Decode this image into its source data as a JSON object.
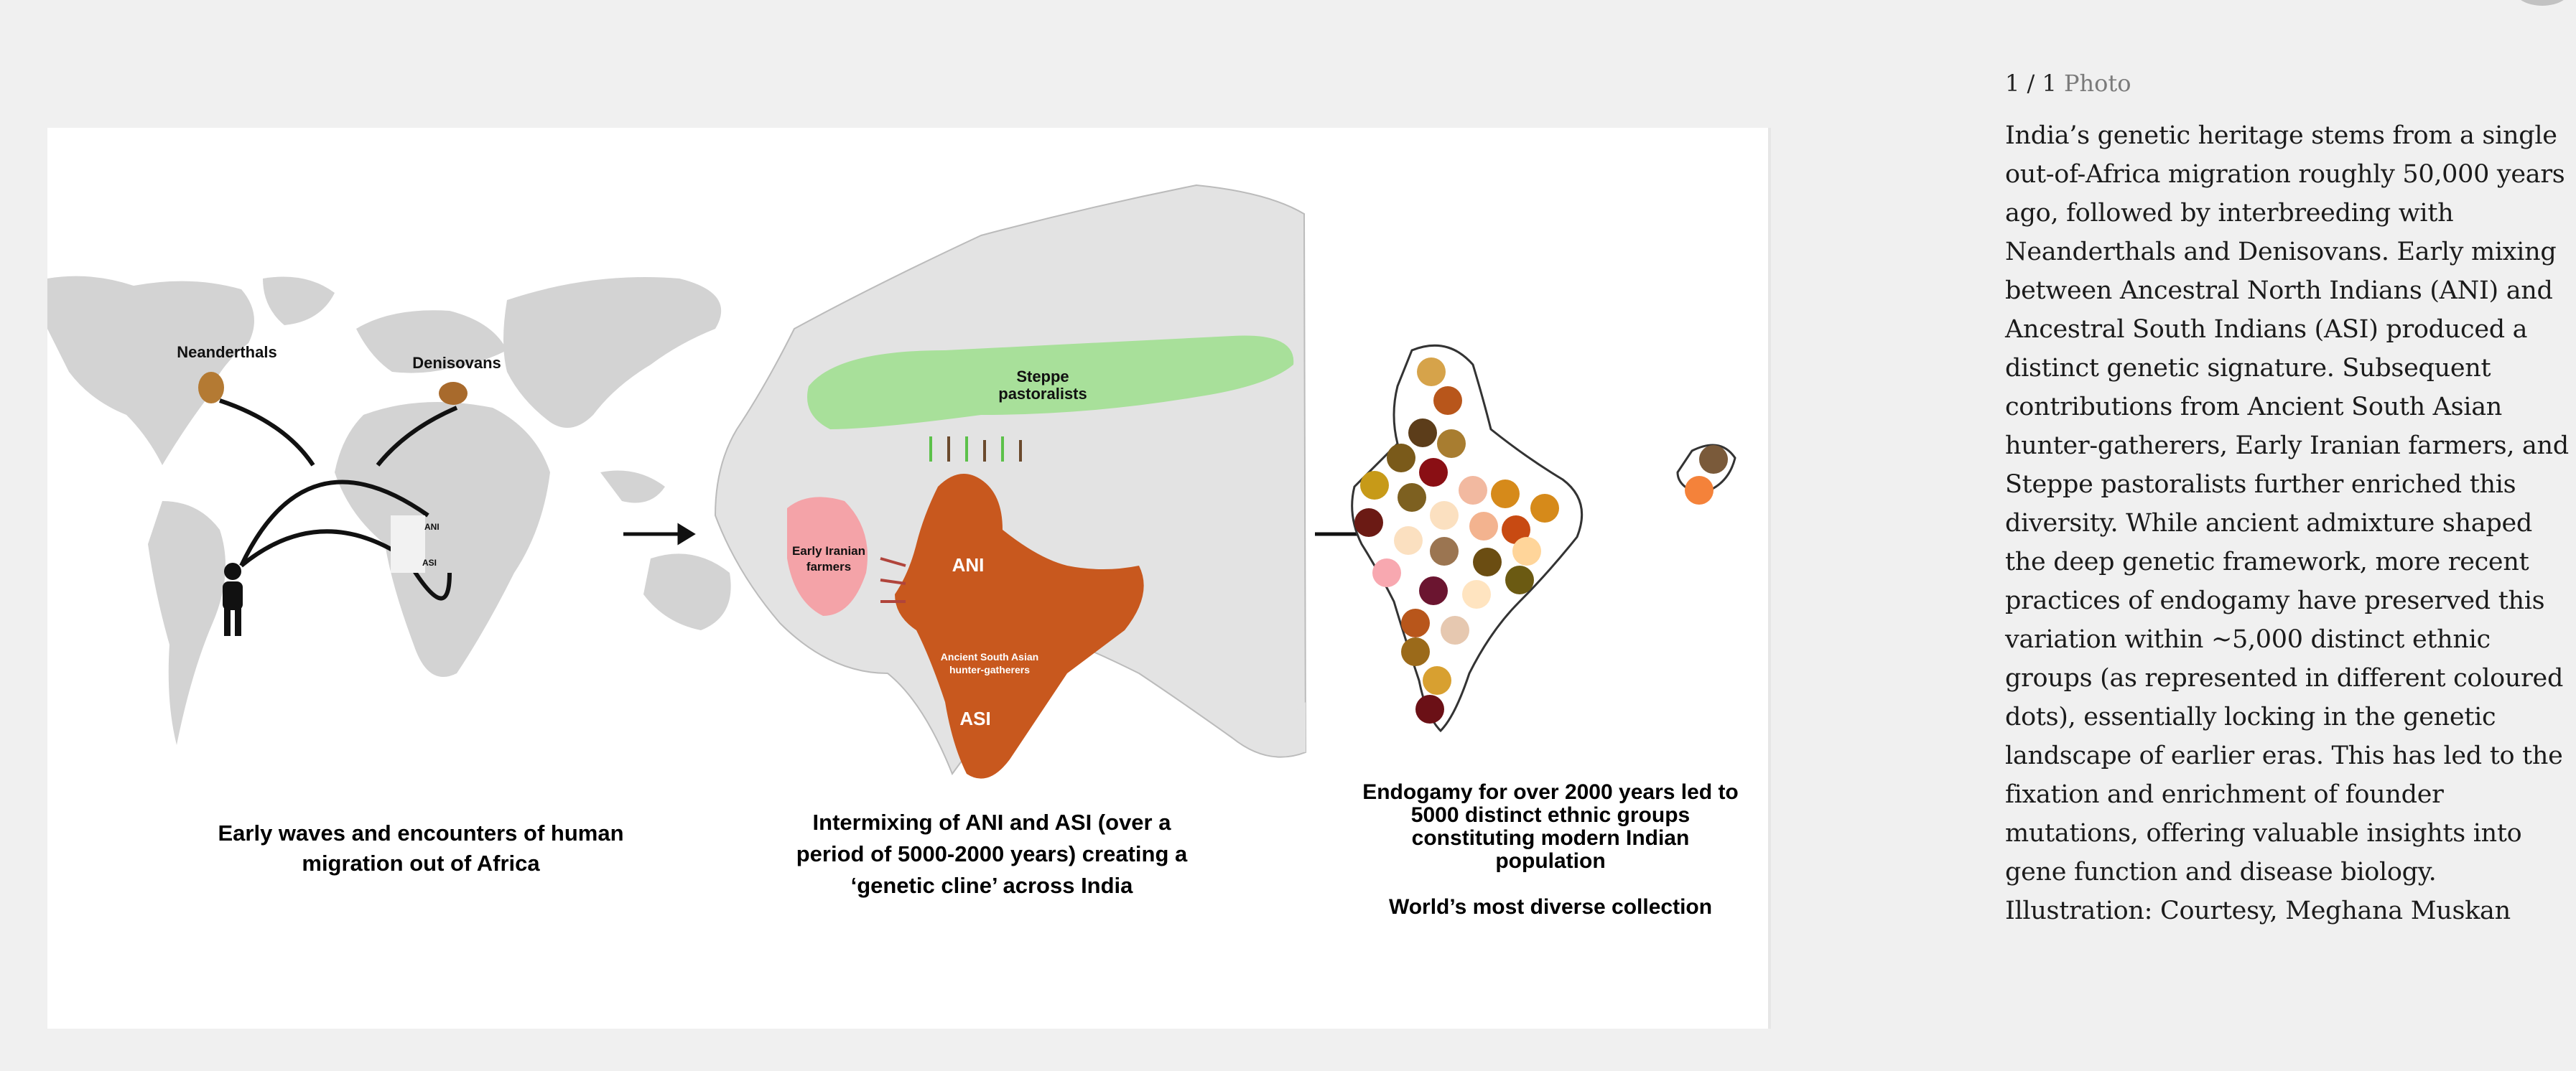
{
  "viewer": {
    "counter_current": "1 / 1",
    "counter_label": "Photo"
  },
  "illustration": {
    "labels": {
      "neanderthals": "Neanderthals",
      "denisovans": "Denisovans",
      "ani_small": "ANI",
      "asi_small": "ASI",
      "steppe_line1": "Steppe",
      "steppe_line2": "pastoralists",
      "iranian_line1": "Early Iranian",
      "iranian_line2": "farmers",
      "ani": "ANI",
      "assg_line1": "Ancient South Asian",
      "assg_line2": "hunter-gatherers",
      "asi": "ASI"
    },
    "caption_left": "Early waves and encounters of human migration out of Africa",
    "caption_middle": "Intermixing of ANI and ASI (over a period of 5000-2000 years) creating a ‘genetic cline’ across India",
    "caption_right": "Endogamy for over 2000 years led to 5000 distinct ethnic groups constituting modern Indian population",
    "caption_right_sub": "World’s most diverse collection",
    "colors": {
      "steppe": "#a8e09a",
      "iranian": "#f4a3a8",
      "india": "#c8581e",
      "land": "#d3d3d3"
    }
  },
  "description": "India’s genetic heritage stems from a single out-of-Africa migration roughly 50,000 years ago, followed by interbreeding with Neanderthals and Denisovans. Early mixing between Ancestral North Indians (ANI) and Ancestral South Indians (ASI) produced a distinct genetic signature. Subsequent contributions from Ancient South Asian hunter-gatherers, Early Iranian farmers, and Steppe pastoralists further enriched this diversity. While ancient admixture shaped the deep genetic framework, more recent practices of endogamy have preserved this variation within ~5,000 distinct ethnic groups (as represented in different coloured dots), essentially locking in the genetic landscape of earlier eras. This has led to the fixation and enrichment of founder mutations, offering valuable insights into gene function and disease biology. Illustration: Courtesy, Meghana Muskan"
}
